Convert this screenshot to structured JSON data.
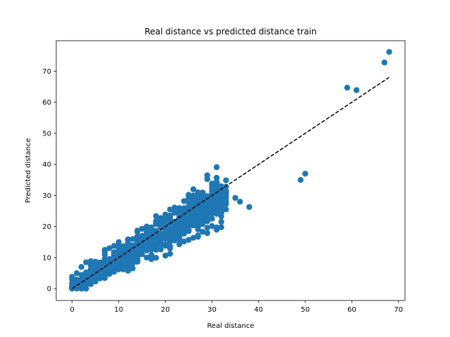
{
  "chart_data": {
    "type": "scatter",
    "title": "Real distance vs predicted distance train",
    "xlabel": "Real distance",
    "ylabel": "Predicted distance",
    "xlim": [
      -3.4,
      71.4
    ],
    "ylim": [
      -3.8,
      79.8
    ],
    "xticks": [
      0,
      10,
      20,
      30,
      40,
      50,
      60,
      70
    ],
    "yticks": [
      0,
      10,
      20,
      30,
      40,
      50,
      60,
      70
    ],
    "point_color": "#1f77b4",
    "reference_line": {
      "style": "dashed",
      "color": "#000000",
      "x": [
        0,
        68
      ],
      "y": [
        0,
        68
      ]
    },
    "outliers": [
      {
        "x": 68,
        "y": 76.2
      },
      {
        "x": 67,
        "y": 72.8
      },
      {
        "x": 59,
        "y": 64.7
      },
      {
        "x": 61,
        "y": 63.9
      },
      {
        "x": 50,
        "y": 37
      },
      {
        "x": 49,
        "y": 35
      },
      {
        "x": 38,
        "y": 26.3
      },
      {
        "x": 36,
        "y": 28
      },
      {
        "x": 35,
        "y": 29.2
      },
      {
        "x": 33,
        "y": 25.5
      },
      {
        "x": 32,
        "y": 19.8
      },
      {
        "x": 31,
        "y": 19
      },
      {
        "x": 27,
        "y": 16.7
      },
      {
        "x": 24,
        "y": 15.2
      },
      {
        "x": 23,
        "y": 14.3
      },
      {
        "x": 21,
        "y": 13
      },
      {
        "x": 16,
        "y": 10
      },
      {
        "x": 14,
        "y": 9.5
      },
      {
        "x": 12,
        "y": 7.8
      },
      {
        "x": 11,
        "y": 6.2
      },
      {
        "x": 12,
        "y": 6
      },
      {
        "x": 26,
        "y": 32
      },
      {
        "x": 27,
        "y": 31
      },
      {
        "x": 21,
        "y": 23
      },
      {
        "x": 20,
        "y": 23
      },
      {
        "x": 16,
        "y": 20
      },
      {
        "x": 13,
        "y": 16
      },
      {
        "x": 10,
        "y": 15
      },
      {
        "x": 8,
        "y": 13
      },
      {
        "x": 7,
        "y": 12
      },
      {
        "x": 3,
        "y": 8.5
      },
      {
        "x": 2,
        "y": 7
      },
      {
        "x": 1,
        "y": 5
      },
      {
        "x": 0,
        "y": 0
      },
      {
        "x": 1,
        "y": 1
      }
    ]
  }
}
